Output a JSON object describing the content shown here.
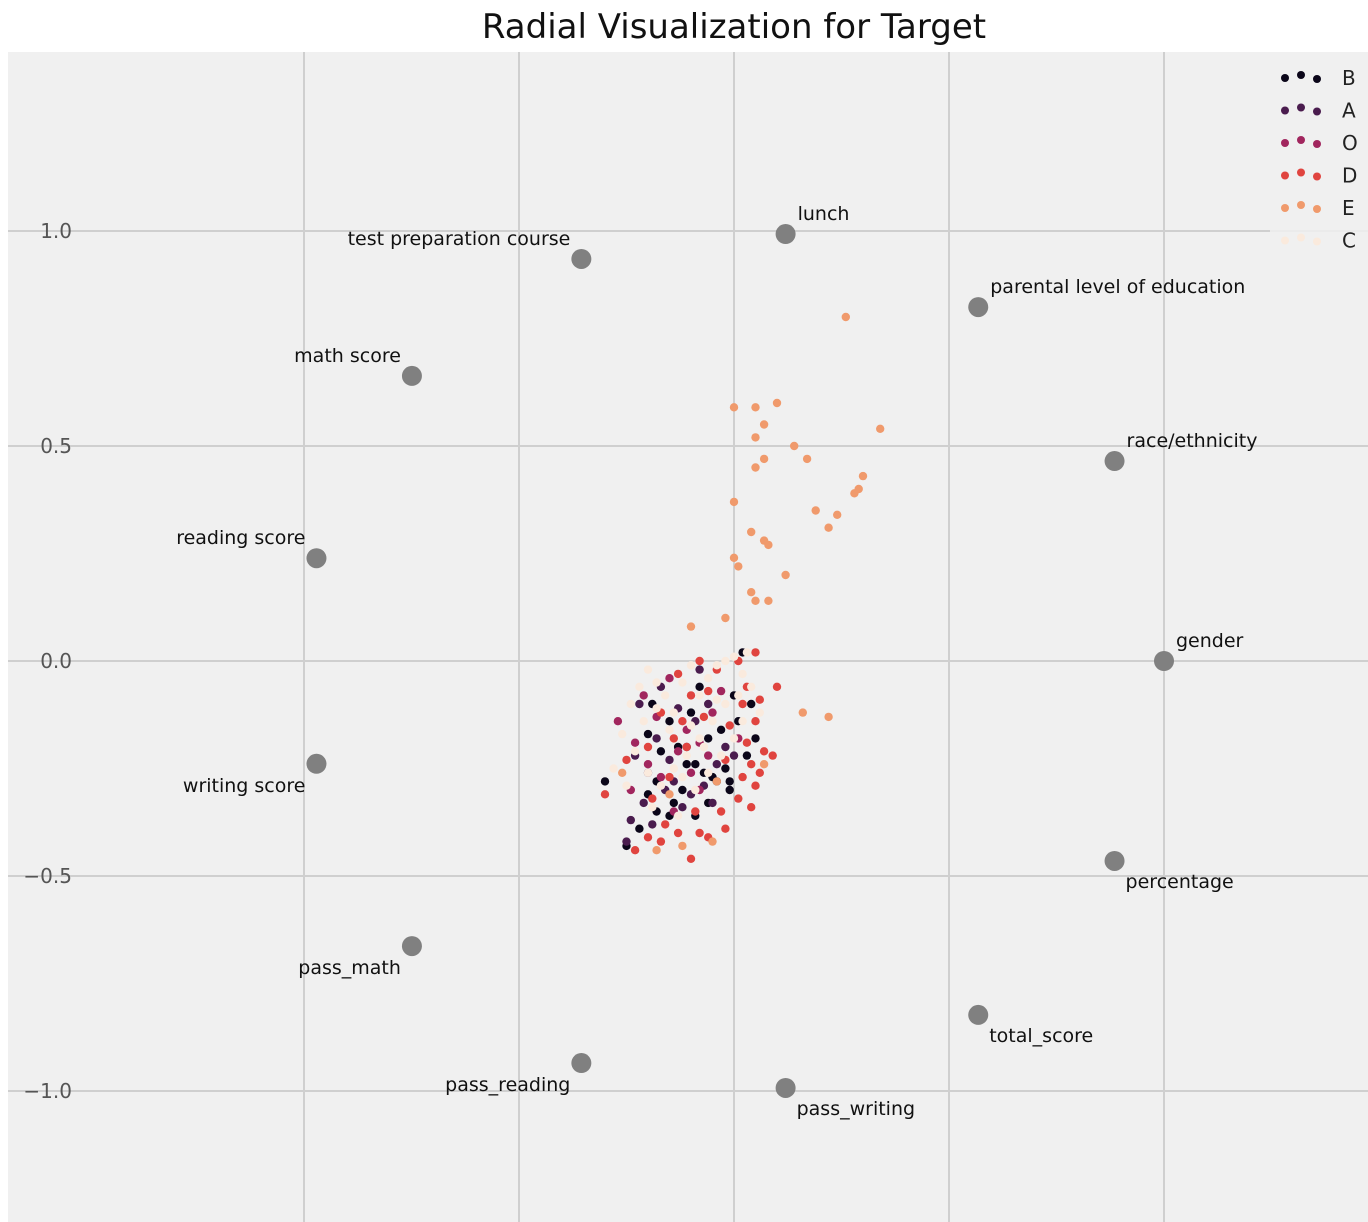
{
  "chart_data": {
    "type": "scatter",
    "title": "Radial Visualization for Target",
    "xlabel": "",
    "ylabel": "",
    "xlim": [
      -1.0,
      1.48
    ],
    "ylim": [
      -1.3,
      1.5
    ],
    "grid": true,
    "legend_position": "top-right",
    "yticks": [
      1.0,
      0.5,
      0.0,
      -0.5,
      -1.0
    ],
    "ytick_labels": [
      "1.0",
      "0.5",
      "0.0",
      "−0.5",
      "−1.0"
    ],
    "xgrid": [
      -0.5,
      0.0,
      0.5,
      1.0
    ],
    "anchors": [
      {
        "name": "gender",
        "x": 1.0,
        "y": 0.0,
        "label_pos": "above-right"
      },
      {
        "name": "race/ethnicity",
        "x": 0.885,
        "y": 0.465,
        "label_pos": "above-right"
      },
      {
        "name": "parental level of education",
        "x": 0.568,
        "y": 0.823,
        "label_pos": "above-right"
      },
      {
        "name": "lunch",
        "x": 0.12,
        "y": 0.993,
        "label_pos": "above-right"
      },
      {
        "name": "test preparation course",
        "x": -0.355,
        "y": 0.935,
        "label_pos": "above-left"
      },
      {
        "name": "math score",
        "x": -0.749,
        "y": 0.663,
        "label_pos": "above-left"
      },
      {
        "name": "reading score",
        "x": -0.971,
        "y": 0.239,
        "label_pos": "above-left"
      },
      {
        "name": "writing score",
        "x": -0.971,
        "y": -0.239,
        "label_pos": "below-left"
      },
      {
        "name": "pass_math",
        "x": -0.749,
        "y": -0.663,
        "label_pos": "below-left"
      },
      {
        "name": "pass_reading",
        "x": -0.355,
        "y": -0.935,
        "label_pos": "below-left"
      },
      {
        "name": "pass_writing",
        "x": 0.12,
        "y": -0.993,
        "label_pos": "below-right"
      },
      {
        "name": "total_score",
        "x": 0.568,
        "y": -0.823,
        "label_pos": "below-right"
      },
      {
        "name": "percentage",
        "x": 0.885,
        "y": -0.465,
        "label_pos": "below-right"
      }
    ],
    "series": [
      {
        "name": "B",
        "color": "#0b0619",
        "points": [
          [
            -0.25,
            -0.43
          ],
          [
            -0.22,
            -0.39
          ],
          [
            -0.18,
            -0.35
          ],
          [
            -0.15,
            -0.36
          ],
          [
            -0.09,
            -0.36
          ],
          [
            -0.06,
            -0.33
          ],
          [
            -0.01,
            -0.3
          ],
          [
            -0.02,
            -0.25
          ],
          [
            -0.04,
            -0.28
          ],
          [
            -0.07,
            -0.26
          ],
          [
            -0.11,
            -0.24
          ],
          [
            -0.13,
            -0.2
          ],
          [
            -0.17,
            -0.21
          ],
          [
            -0.2,
            -0.17
          ],
          [
            -0.06,
            -0.18
          ],
          [
            -0.03,
            -0.16
          ],
          [
            0.01,
            -0.14
          ],
          [
            0.04,
            -0.1
          ],
          [
            0.05,
            -0.18
          ],
          [
            0.03,
            -0.22
          ],
          [
            -0.3,
            -0.28
          ],
          [
            -0.19,
            -0.1
          ],
          [
            -0.15,
            -0.14
          ],
          [
            -0.08,
            -0.06
          ],
          [
            -0.12,
            -0.3
          ],
          [
            0.0,
            -0.08
          ],
          [
            0.02,
            0.02
          ],
          [
            -0.1,
            -0.12
          ],
          [
            -0.18,
            -0.28
          ],
          [
            -0.05,
            -0.27
          ],
          [
            -0.09,
            -0.24
          ],
          [
            -0.14,
            -0.33
          ],
          [
            -0.2,
            -0.31
          ],
          [
            -0.01,
            -0.28
          ]
        ]
      },
      {
        "name": "A",
        "color": "#4a1c4e",
        "points": [
          [
            -0.25,
            -0.42
          ],
          [
            -0.24,
            -0.37
          ],
          [
            -0.21,
            -0.33
          ],
          [
            -0.2,
            -0.26
          ],
          [
            -0.23,
            -0.22
          ],
          [
            -0.18,
            -0.18
          ],
          [
            -0.14,
            -0.28
          ],
          [
            -0.12,
            -0.34
          ],
          [
            -0.1,
            -0.31
          ],
          [
            -0.07,
            -0.29
          ],
          [
            -0.04,
            -0.24
          ],
          [
            -0.02,
            -0.2
          ],
          [
            -0.17,
            -0.06
          ],
          [
            -0.13,
            -0.11
          ],
          [
            -0.09,
            -0.14
          ],
          [
            -0.06,
            -0.1
          ],
          [
            -0.22,
            -0.1
          ],
          [
            -0.15,
            -0.23
          ],
          [
            -0.05,
            -0.33
          ],
          [
            -0.19,
            -0.38
          ],
          [
            -0.11,
            -0.2
          ],
          [
            -0.08,
            -0.02
          ],
          [
            0.0,
            -0.22
          ],
          [
            -0.16,
            -0.3
          ]
        ]
      },
      {
        "name": "O",
        "color": "#a1265e",
        "points": [
          [
            -0.27,
            -0.14
          ],
          [
            -0.23,
            -0.19
          ],
          [
            -0.2,
            -0.24
          ],
          [
            -0.17,
            -0.27
          ],
          [
            -0.13,
            -0.21
          ],
          [
            -0.11,
            -0.16
          ],
          [
            -0.08,
            -0.19
          ],
          [
            -0.05,
            -0.12
          ],
          [
            -0.03,
            -0.07
          ],
          [
            -0.15,
            -0.04
          ],
          [
            -0.18,
            -0.13
          ],
          [
            -0.1,
            -0.26
          ],
          [
            -0.06,
            -0.22
          ],
          [
            -0.21,
            -0.08
          ],
          [
            -0.14,
            -0.35
          ],
          [
            0.01,
            -0.18
          ],
          [
            -0.24,
            -0.3
          ],
          [
            -0.08,
            -0.3
          ]
        ]
      },
      {
        "name": "D",
        "color": "#e0443f",
        "points": [
          [
            -0.23,
            -0.44
          ],
          [
            -0.2,
            -0.41
          ],
          [
            -0.17,
            -0.42
          ],
          [
            -0.13,
            -0.4
          ],
          [
            -0.1,
            -0.46
          ],
          [
            -0.08,
            -0.4
          ],
          [
            -0.06,
            -0.41
          ],
          [
            -0.02,
            -0.39
          ],
          [
            -0.03,
            -0.35
          ],
          [
            0.01,
            -0.32
          ],
          [
            0.04,
            -0.34
          ],
          [
            0.02,
            -0.27
          ],
          [
            0.06,
            -0.26
          ],
          [
            0.07,
            -0.21
          ],
          [
            0.09,
            -0.22
          ],
          [
            0.03,
            -0.19
          ],
          [
            0.05,
            -0.14
          ],
          [
            0.1,
            -0.06
          ],
          [
            0.06,
            -0.09
          ],
          [
            0.03,
            -0.06
          ],
          [
            0.05,
            0.02
          ],
          [
            0.01,
            0.0
          ],
          [
            -0.04,
            -0.02
          ],
          [
            -0.08,
            0.0
          ],
          [
            -0.13,
            -0.03
          ],
          [
            -0.17,
            -0.12
          ],
          [
            -0.2,
            -0.2
          ],
          [
            -0.25,
            -0.23
          ],
          [
            -0.3,
            -0.31
          ],
          [
            -0.19,
            -0.32
          ],
          [
            -0.15,
            -0.27
          ],
          [
            -0.11,
            -0.2
          ],
          [
            -0.07,
            -0.13
          ],
          [
            -0.1,
            -0.08
          ],
          [
            -0.14,
            -0.18
          ],
          [
            -0.01,
            -0.15
          ],
          [
            0.04,
            -0.24
          ],
          [
            -0.09,
            -0.35
          ],
          [
            -0.16,
            -0.38
          ],
          [
            0.05,
            -0.29
          ],
          [
            -0.02,
            -0.23
          ],
          [
            0.02,
            -0.1
          ],
          [
            -0.06,
            -0.07
          ],
          [
            -0.12,
            -0.14
          ]
        ]
      },
      {
        "name": "E",
        "color": "#f09a6c",
        "points": [
          [
            0.26,
            0.8
          ],
          [
            0.34,
            0.54
          ],
          [
            0.3,
            0.43
          ],
          [
            0.29,
            0.4
          ],
          [
            0.28,
            0.39
          ],
          [
            0.24,
            0.34
          ],
          [
            0.22,
            0.31
          ],
          [
            0.19,
            0.35
          ],
          [
            0.17,
            0.47
          ],
          [
            0.14,
            0.5
          ],
          [
            0.1,
            0.6
          ],
          [
            0.05,
            0.59
          ],
          [
            0.0,
            0.59
          ],
          [
            0.07,
            0.55
          ],
          [
            0.05,
            0.52
          ],
          [
            0.07,
            0.47
          ],
          [
            0.05,
            0.45
          ],
          [
            0.0,
            0.37
          ],
          [
            0.04,
            0.3
          ],
          [
            0.07,
            0.28
          ],
          [
            0.08,
            0.27
          ],
          [
            0.12,
            0.2
          ],
          [
            0.0,
            0.24
          ],
          [
            0.01,
            0.22
          ],
          [
            0.04,
            0.16
          ],
          [
            0.05,
            0.14
          ],
          [
            0.08,
            0.14
          ],
          [
            -0.02,
            0.1
          ],
          [
            -0.1,
            0.08
          ],
          [
            0.16,
            -0.12
          ],
          [
            0.22,
            -0.13
          ],
          [
            -0.12,
            -0.43
          ],
          [
            -0.05,
            -0.42
          ],
          [
            -0.18,
            -0.44
          ],
          [
            -0.04,
            -0.28
          ],
          [
            0.07,
            -0.24
          ],
          [
            -0.15,
            -0.31
          ],
          [
            -0.26,
            -0.26
          ]
        ]
      },
      {
        "name": "C",
        "color": "#faeadd",
        "points": [
          [
            -0.24,
            -0.1
          ],
          [
            -0.22,
            -0.06
          ],
          [
            -0.2,
            -0.02
          ],
          [
            -0.18,
            -0.05
          ],
          [
            -0.16,
            -0.08
          ],
          [
            -0.14,
            -0.12
          ],
          [
            -0.12,
            -0.05
          ],
          [
            -0.1,
            -0.01
          ],
          [
            -0.08,
            -0.08
          ],
          [
            -0.06,
            -0.04
          ],
          [
            -0.04,
            -0.01
          ],
          [
            -0.02,
            0.0
          ],
          [
            0.0,
            0.01
          ],
          [
            0.02,
            -0.03
          ],
          [
            0.04,
            -0.06
          ],
          [
            0.01,
            -0.08
          ],
          [
            -0.02,
            -0.1
          ],
          [
            -0.05,
            -0.14
          ],
          [
            -0.08,
            -0.18
          ],
          [
            -0.11,
            -0.22
          ],
          [
            -0.14,
            -0.25
          ],
          [
            -0.17,
            -0.29
          ],
          [
            -0.2,
            -0.26
          ],
          [
            -0.23,
            -0.21
          ],
          [
            -0.26,
            -0.17
          ],
          [
            -0.28,
            -0.25
          ],
          [
            -0.12,
            -0.27
          ],
          [
            -0.09,
            -0.3
          ],
          [
            -0.06,
            -0.26
          ],
          [
            -0.03,
            -0.22
          ],
          [
            0.0,
            -0.18
          ],
          [
            0.02,
            -0.14
          ],
          [
            -0.15,
            -0.16
          ],
          [
            -0.18,
            -0.11
          ],
          [
            -0.1,
            -0.15
          ],
          [
            -0.04,
            -0.09
          ],
          [
            0.03,
            0.02
          ],
          [
            -0.19,
            -0.34
          ],
          [
            -0.13,
            -0.36
          ],
          [
            -0.07,
            -0.2
          ],
          [
            -0.21,
            -0.14
          ],
          [
            -0.25,
            -0.29
          ],
          [
            0.06,
            -0.12
          ]
        ]
      }
    ]
  }
}
